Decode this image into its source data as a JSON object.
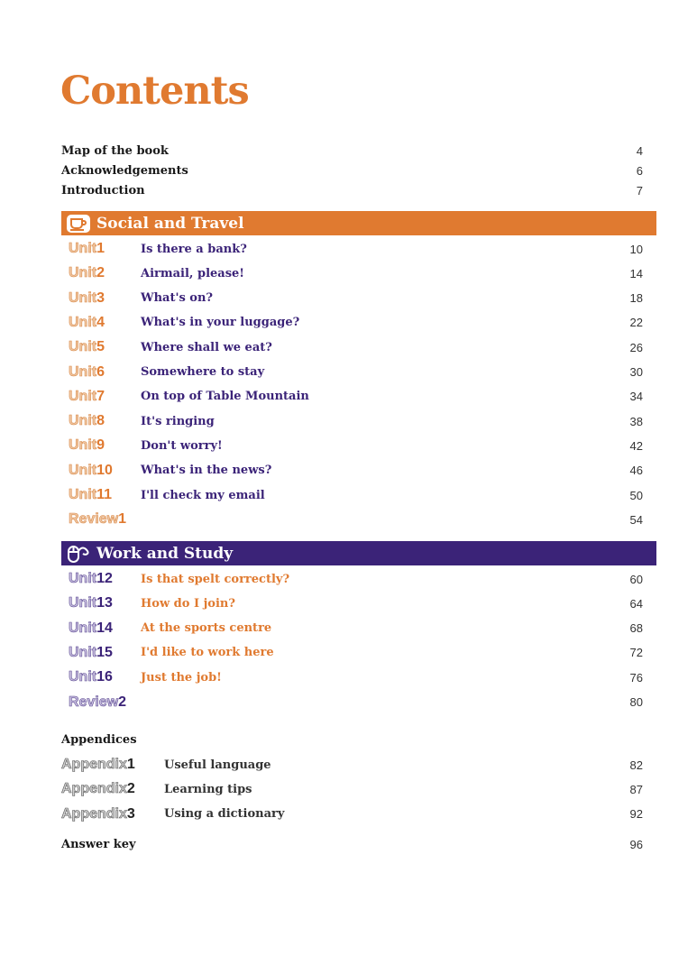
{
  "title": "Contents",
  "front": [
    {
      "label": "Map of the book",
      "page": "4"
    },
    {
      "label": "Acknowledgements",
      "page": "6"
    },
    {
      "label": "Introduction",
      "page": "7"
    }
  ],
  "sections": [
    {
      "name": "Social and Travel",
      "icon": "coffee-cup-icon",
      "color": "#e07a30",
      "units": [
        {
          "tag": "Unit",
          "num": "1",
          "title": "Is there a bank?",
          "page": "10"
        },
        {
          "tag": "Unit",
          "num": "2",
          "title": "Airmail, please!",
          "page": "14"
        },
        {
          "tag": "Unit",
          "num": "3",
          "title": "What's on?",
          "page": "18"
        },
        {
          "tag": "Unit",
          "num": "4",
          "title": "What's in your luggage?",
          "page": "22"
        },
        {
          "tag": "Unit",
          "num": "5",
          "title": "Where shall we eat?",
          "page": "26"
        },
        {
          "tag": "Unit",
          "num": "6",
          "title": "Somewhere to stay",
          "page": "30"
        },
        {
          "tag": "Unit",
          "num": "7",
          "title": "On top of Table Mountain",
          "page": "34"
        },
        {
          "tag": "Unit",
          "num": "8",
          "title": "It's ringing",
          "page": "38"
        },
        {
          "tag": "Unit",
          "num": "9",
          "title": "Don't worry!",
          "page": "42"
        },
        {
          "tag": "Unit",
          "num": "10",
          "title": "What's in the news?",
          "page": "46"
        },
        {
          "tag": "Unit",
          "num": "11",
          "title": "I'll check my email",
          "page": "50"
        },
        {
          "tag": "Review",
          "num": "1",
          "title": "",
          "page": "54"
        }
      ]
    },
    {
      "name": "Work and Study",
      "icon": "computer-mouse-icon",
      "color": "#3b2378",
      "units": [
        {
          "tag": "Unit",
          "num": "12",
          "title": "Is that spelt correctly?",
          "page": "60"
        },
        {
          "tag": "Unit",
          "num": "13",
          "title": "How do I join?",
          "page": "64"
        },
        {
          "tag": "Unit",
          "num": "14",
          "title": "At the sports centre",
          "page": "68"
        },
        {
          "tag": "Unit",
          "num": "15",
          "title": "I'd like to work here",
          "page": "72"
        },
        {
          "tag": "Unit",
          "num": "16",
          "title": "Just the job!",
          "page": "76"
        },
        {
          "tag": "Review",
          "num": "2",
          "title": "",
          "page": "80"
        }
      ]
    }
  ],
  "appendices": {
    "label": "Appendices",
    "items": [
      {
        "tag": "Appendix",
        "num": "1",
        "title": "Useful language",
        "page": "82"
      },
      {
        "tag": "Appendix",
        "num": "2",
        "title": "Learning tips",
        "page": "87"
      },
      {
        "tag": "Appendix",
        "num": "3",
        "title": "Using a dictionary",
        "page": "92"
      }
    ]
  },
  "answer_key": {
    "label": "Answer key",
    "page": "96"
  }
}
